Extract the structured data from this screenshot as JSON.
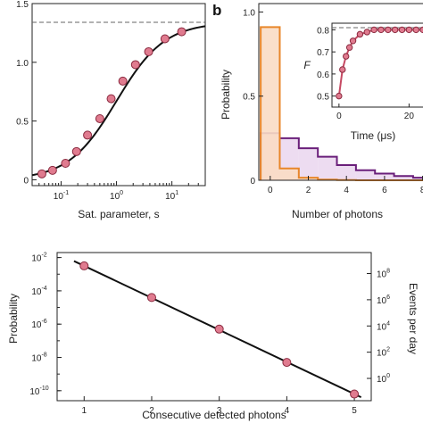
{
  "panels": {
    "a": {
      "letter": "",
      "xlabel": "Sat. parameter, s",
      "x_ticks": [
        {
          "base": "10",
          "exp": "-1",
          "value": 0.1
        },
        {
          "base": "10",
          "exp": "0",
          "value": 1
        },
        {
          "base": "10",
          "exp": "1",
          "value": 10
        }
      ],
      "y_ticks": [
        {
          "label": "0",
          "value": 0
        },
        {
          "label": "0.5",
          "value": 0.5
        },
        {
          "label": "1.0",
          "value": 1.0
        },
        {
          "label": "1.5",
          "value": 1.5
        }
      ]
    },
    "b": {
      "letter": "b",
      "ylabel": "Probability",
      "xlabel": "Number of photons",
      "x_ticks": [
        {
          "label": "0",
          "value": 0
        },
        {
          "label": "2",
          "value": 2
        },
        {
          "label": "4",
          "value": 4
        },
        {
          "label": "6",
          "value": 6
        },
        {
          "label": "8",
          "value": 8
        }
      ],
      "y_ticks": [
        {
          "label": "0",
          "value": 0
        },
        {
          "label": "0.5",
          "value": 0.5
        },
        {
          "label": "1.0",
          "value": 1.0
        }
      ],
      "inset": {
        "ylabel": "F",
        "xlabel": "Time (μs)",
        "x_ticks": [
          {
            "label": "0",
            "value": 0
          },
          {
            "label": "20",
            "value": 20
          }
        ],
        "y_ticks": [
          {
            "label": "0.5",
            "value": 0.5
          },
          {
            "label": "0.6",
            "value": 0.6
          },
          {
            "label": "0.7",
            "value": 0.7
          },
          {
            "label": "0.8",
            "value": 0.8
          }
        ]
      }
    },
    "c": {
      "ylabel": "Probability",
      "ylabel_right": "Events per day",
      "xlabel": "Consecutive detected photons",
      "x_ticks": [
        {
          "label": "1",
          "value": 1
        },
        {
          "label": "2",
          "value": 2
        },
        {
          "label": "3",
          "value": 3
        },
        {
          "label": "4",
          "value": 4
        },
        {
          "label": "5",
          "value": 5
        }
      ],
      "y_ticks": [
        {
          "base": "10",
          "exp": "-2",
          "value": -2
        },
        {
          "base": "10",
          "exp": "-4",
          "value": -4
        },
        {
          "base": "10",
          "exp": "-6",
          "value": -6
        },
        {
          "base": "10",
          "exp": "-8",
          "value": -8
        },
        {
          "base": "10",
          "exp": "-10",
          "value": -10
        }
      ],
      "y_ticks_right": [
        {
          "base": "10",
          "exp": "8",
          "value": 8
        },
        {
          "base": "10",
          "exp": "6",
          "value": 6
        },
        {
          "base": "10",
          "exp": "4",
          "value": 4
        },
        {
          "base": "10",
          "exp": "2",
          "value": 2
        },
        {
          "base": "10",
          "exp": "0",
          "value": 0
        }
      ]
    }
  },
  "colors": {
    "marker_fill": "#e07b8f",
    "marker_edge": "#8a2a3f",
    "orange": "#e8862a",
    "orange_fill": "#f9dcc4",
    "purple": "#6a1f7a",
    "purple_fill": "#ead6ee",
    "fit": "#111111",
    "dashed": "#666666"
  },
  "chart_data": [
    {
      "id": "a",
      "type": "scatter",
      "x_scale": "log",
      "xlim": [
        0.03,
        40
      ],
      "ylim": [
        -0.05,
        1.5
      ],
      "asymptote": 1.34,
      "series": [
        {
          "x": [
            0.045,
            0.07,
            0.12,
            0.19,
            0.3,
            0.5,
            0.8,
            1.3,
            2.2,
            3.8,
            7.5,
            15
          ],
          "y": [
            0.05,
            0.08,
            0.14,
            0.24,
            0.38,
            0.52,
            0.69,
            0.84,
            0.98,
            1.09,
            1.2,
            1.26
          ]
        }
      ],
      "fit": "y = 1.34*s/(1+s)"
    },
    {
      "id": "b",
      "type": "bar",
      "xlim": [
        -0.6,
        8.3
      ],
      "ylim": [
        0,
        1.05
      ],
      "bin_edges": [
        -0.5,
        0.5,
        1.5,
        2.5,
        3.5,
        4.5,
        5.5,
        6.5,
        7.5,
        8.5
      ],
      "series": [
        {
          "color": "#e8862a",
          "values": [
            0.91,
            0.07,
            0.015,
            0.004,
            0.001,
            0,
            0,
            0,
            0
          ]
        },
        {
          "color": "#6a1f7a",
          "values": [
            0.28,
            0.25,
            0.19,
            0.14,
            0.09,
            0.06,
            0.04,
            0.025,
            0.015
          ]
        }
      ]
    },
    {
      "id": "b-inset",
      "type": "line",
      "xlim": [
        -2,
        25
      ],
      "ylim": [
        0.45,
        0.83
      ],
      "asymptote": 0.81,
      "series": [
        {
          "x": [
            0,
            1,
            2,
            3,
            4,
            6,
            8,
            10,
            12,
            14,
            16,
            18,
            20,
            22,
            24
          ],
          "y": [
            0.5,
            0.62,
            0.68,
            0.72,
            0.75,
            0.78,
            0.79,
            0.8,
            0.8,
            0.8,
            0.8,
            0.8,
            0.8,
            0.8,
            0.8
          ]
        }
      ]
    },
    {
      "id": "c",
      "type": "scatter",
      "y_scale": "log",
      "xlim": [
        0.6,
        5.25
      ],
      "ylim_log10": [
        -10.6,
        -1.7
      ],
      "right_axis_log10": [
        -1.7,
        9.6
      ],
      "series": [
        {
          "x": [
            1,
            2,
            3,
            4,
            5
          ],
          "log10_y": [
            -2.5,
            -4.4,
            -6.3,
            -8.3,
            -10.2
          ]
        }
      ]
    }
  ]
}
